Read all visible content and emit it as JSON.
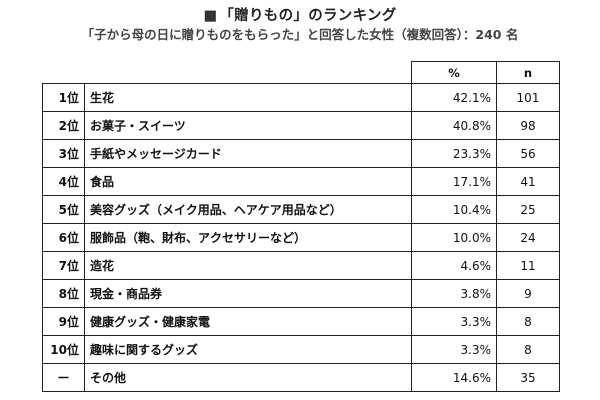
{
  "title": "「贈りもの」のランキング",
  "title_marker": "■",
  "subtitle": "「子から母の日に贈りものをもらった」と回答した女性（複数回答）：240 名",
  "table": {
    "headers": {
      "pct": "%",
      "n": "n"
    },
    "rows": [
      {
        "rank": "1位",
        "item": "生花",
        "pct": "42.1%",
        "n": "101"
      },
      {
        "rank": "2位",
        "item": "お菓子・スイーツ",
        "pct": "40.8%",
        "n": "98"
      },
      {
        "rank": "3位",
        "item": "手紙やメッセージカード",
        "pct": "23.3%",
        "n": "56"
      },
      {
        "rank": "4位",
        "item": "食品",
        "pct": "17.1%",
        "n": "41"
      },
      {
        "rank": "5位",
        "item": "美容グッズ（メイク用品、ヘアケア用品など）",
        "pct": "10.4%",
        "n": "25"
      },
      {
        "rank": "6位",
        "item": "服飾品（鞄、財布、アクセサリーなど）",
        "pct": "10.0%",
        "n": "24"
      },
      {
        "rank": "7位",
        "item": "造花",
        "pct": "4.6%",
        "n": "11"
      },
      {
        "rank": "8位",
        "item": "現金・商品券",
        "pct": "3.8%",
        "n": "9"
      },
      {
        "rank": "9位",
        "item": "健康グッズ・健康家電",
        "pct": "3.3%",
        "n": "8"
      },
      {
        "rank": "10位",
        "item": "趣味に関するグッズ",
        "pct": "3.3%",
        "n": "8"
      },
      {
        "rank": "ー",
        "item": "その他",
        "pct": "14.6%",
        "n": "35"
      }
    ]
  }
}
